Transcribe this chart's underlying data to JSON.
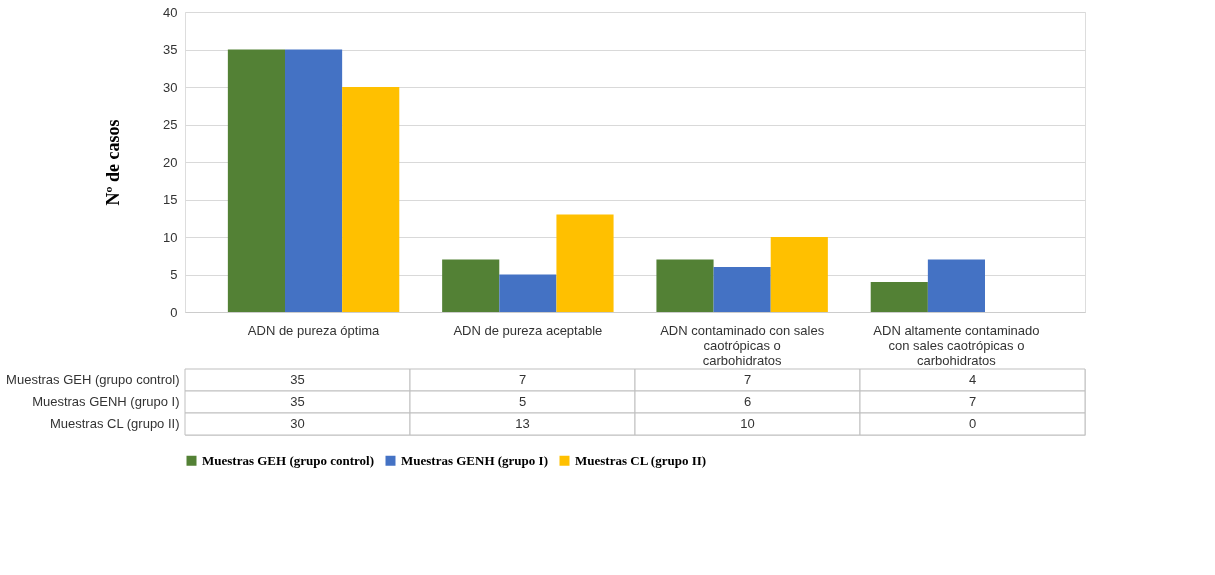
{
  "chart_data": {
    "type": "bar",
    "ylabel": "Nº de casos",
    "categories": [
      "ADN de pureza óptima",
      "ADN de pureza aceptable",
      "ADN contaminado con sales caotrópicas o carbohidratos",
      "ADN altamente contaminado con sales caotrópicas o carbohidratos"
    ],
    "series": [
      {
        "name": "Muestras GEH (grupo control)",
        "color": "#538135",
        "values": [
          35,
          7,
          7,
          4
        ]
      },
      {
        "name": "Muestras GENH (grupo I)",
        "color": "#4472c4",
        "values": [
          35,
          5,
          6,
          7
        ]
      },
      {
        "name": "Muestras CL (grupo II)",
        "color": "#ffc000",
        "values": [
          30,
          13,
          10,
          0
        ]
      }
    ],
    "ylim": [
      0,
      40
    ],
    "yticks": [
      0,
      5,
      10,
      15,
      20,
      25,
      30,
      35,
      40
    ],
    "grid": "y",
    "legend": "bottom",
    "data_labels": true
  }
}
